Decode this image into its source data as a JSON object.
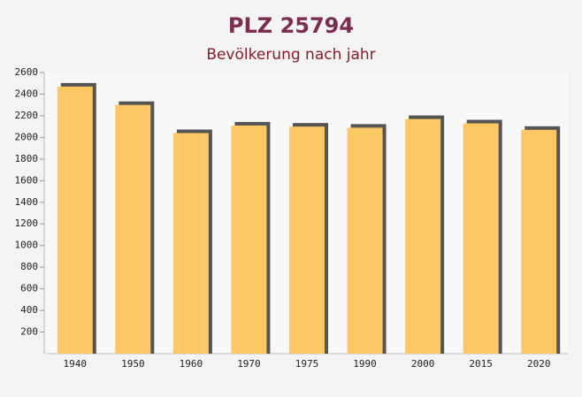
{
  "chart_data": {
    "type": "bar",
    "title": "PLZ 25794",
    "subtitle": "Bevölkerung nach jahr",
    "categories": [
      "1940",
      "1950",
      "1960",
      "1970",
      "1975",
      "1990",
      "2000",
      "2015",
      "2020"
    ],
    "values": [
      2470,
      2300,
      2040,
      2110,
      2100,
      2090,
      2170,
      2130,
      2070
    ],
    "color": "#fcc865",
    "ylim": [
      0,
      2600
    ],
    "yticks": [
      200,
      400,
      600,
      800,
      1000,
      1200,
      1400,
      1600,
      1800,
      2000,
      2200,
      2400,
      2600
    ]
  }
}
